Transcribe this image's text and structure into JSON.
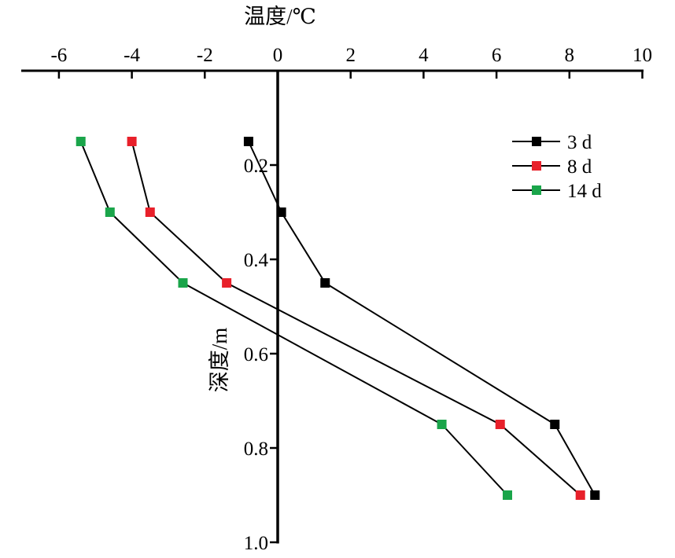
{
  "chart_data": {
    "type": "line",
    "xlabel": "温度/℃",
    "ylabel": "深度/m",
    "xlim": [
      -7,
      10
    ],
    "ylim": [
      0,
      1.0
    ],
    "x_axis_position": "top",
    "y_axis_reversed": true,
    "grid": false,
    "legend_position": "top-right",
    "x_ticks": [
      -6,
      -4,
      -2,
      0,
      2,
      4,
      6,
      8,
      10
    ],
    "x_tick_labels": [
      "-6",
      "-4",
      "-2",
      "0",
      "2",
      "4",
      "6",
      "8",
      "10"
    ],
    "y_ticks": [
      0.2,
      0.4,
      0.6,
      0.8,
      1.0
    ],
    "y_tick_labels": [
      "0.2",
      "0.4",
      "0.6",
      "0.8",
      "1.0"
    ],
    "series": [
      {
        "name": "3 d",
        "color": "#000000",
        "points": [
          {
            "x": -0.8,
            "y": 0.15
          },
          {
            "x": 0.1,
            "y": 0.3
          },
          {
            "x": 1.3,
            "y": 0.45
          },
          {
            "x": 7.6,
            "y": 0.75
          },
          {
            "x": 8.7,
            "y": 0.9
          }
        ]
      },
      {
        "name": "8 d",
        "color": "#e8202a",
        "points": [
          {
            "x": -4.0,
            "y": 0.15
          },
          {
            "x": -3.5,
            "y": 0.3
          },
          {
            "x": -1.4,
            "y": 0.45
          },
          {
            "x": 6.1,
            "y": 0.75
          },
          {
            "x": 8.3,
            "y": 0.9
          }
        ]
      },
      {
        "name": "14 d",
        "color": "#1aa54a",
        "points": [
          {
            "x": -5.4,
            "y": 0.15
          },
          {
            "x": -4.6,
            "y": 0.3
          },
          {
            "x": -2.6,
            "y": 0.45
          },
          {
            "x": 4.5,
            "y": 0.75
          },
          {
            "x": 6.3,
            "y": 0.9
          }
        ]
      }
    ]
  }
}
